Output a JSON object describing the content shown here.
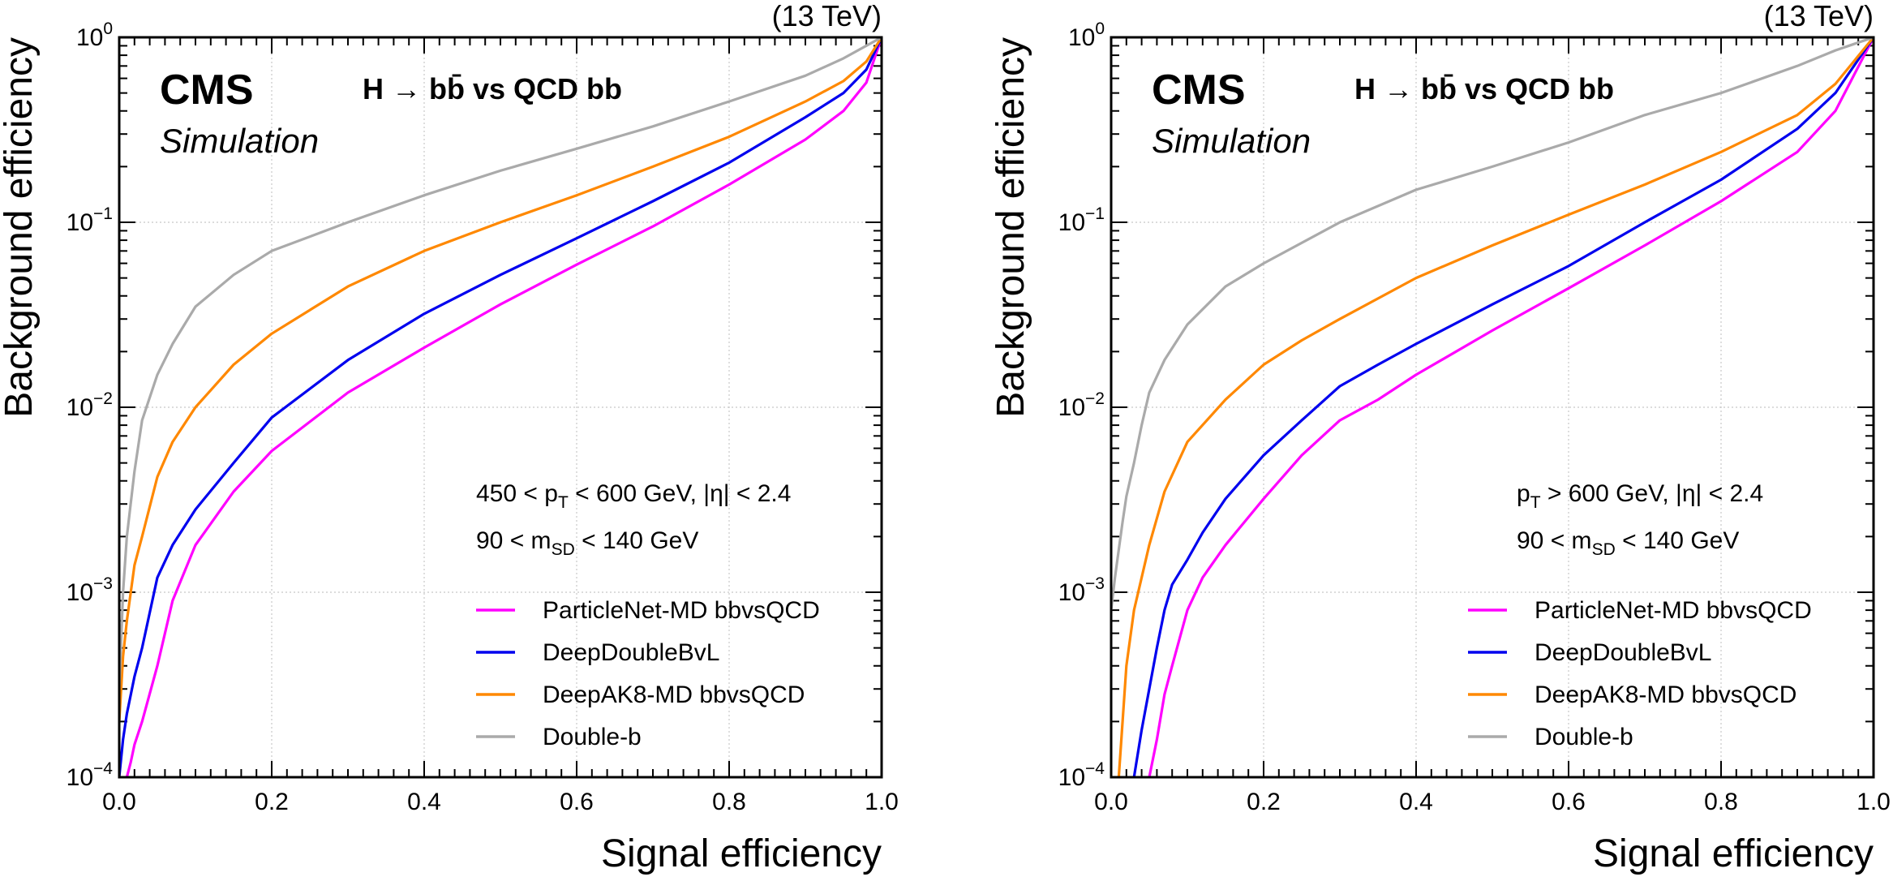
{
  "chart_data": [
    {
      "type": "line",
      "energy_label": "(13 TeV)",
      "experiment": "CMS",
      "subtitle": "Simulation",
      "process_title": "H → bb̄ vs QCD bb",
      "xlabel": "Signal efficiency",
      "ylabel": "Background efficiency",
      "xlim": [
        0,
        1
      ],
      "ylim": [
        0.0001,
        1
      ],
      "yscale": "log",
      "grid": true,
      "legend_position": "bottom-right",
      "x_ticks": [
        "0.0",
        "0.2",
        "0.4",
        "0.6",
        "0.8",
        "1.0"
      ],
      "y_ticks": [
        {
          "base": "10",
          "exp": "−4"
        },
        {
          "base": "10",
          "exp": "−3"
        },
        {
          "base": "10",
          "exp": "−2"
        },
        {
          "base": "10",
          "exp": "−1"
        },
        {
          "base": "10",
          "exp": "0"
        }
      ],
      "selection": {
        "line1_parts": [
          "450 < p",
          "T",
          " < 600 GeV, |η| < 2.4"
        ],
        "line2_parts": [
          "90 < m",
          "SD",
          " < 140 GeV"
        ]
      },
      "series": [
        {
          "name": "ParticleNet-MD bbvsQCD",
          "color": "#ff00ff",
          "x": [
            0.01,
            0.015,
            0.02,
            0.03,
            0.05,
            0.07,
            0.1,
            0.15,
            0.2,
            0.3,
            0.4,
            0.5,
            0.6,
            0.7,
            0.8,
            0.9,
            0.95,
            0.98,
            1.0
          ],
          "y": [
            0.0001,
            0.00012,
            0.00015,
            0.0002,
            0.0004,
            0.0009,
            0.0018,
            0.0035,
            0.0058,
            0.012,
            0.021,
            0.036,
            0.059,
            0.095,
            0.16,
            0.28,
            0.4,
            0.57,
            1.0
          ]
        },
        {
          "name": "DeepDoubleBvL",
          "color": "#0000ee",
          "x": [
            0.0,
            0.005,
            0.01,
            0.02,
            0.03,
            0.05,
            0.07,
            0.1,
            0.15,
            0.2,
            0.3,
            0.4,
            0.5,
            0.6,
            0.7,
            0.8,
            0.9,
            0.95,
            0.98,
            1.0
          ],
          "y": [
            0.0001,
            0.00016,
            0.00022,
            0.00035,
            0.0005,
            0.0012,
            0.0018,
            0.0028,
            0.005,
            0.0088,
            0.018,
            0.032,
            0.052,
            0.082,
            0.13,
            0.21,
            0.37,
            0.5,
            0.67,
            1.0
          ]
        },
        {
          "name": "DeepAK8-MD bbvsQCD",
          "color": "#ff8800",
          "x": [
            0.0,
            0.005,
            0.01,
            0.02,
            0.03,
            0.05,
            0.07,
            0.1,
            0.15,
            0.2,
            0.3,
            0.4,
            0.5,
            0.6,
            0.7,
            0.8,
            0.9,
            0.95,
            0.98,
            1.0
          ],
          "y": [
            0.0002,
            0.00045,
            0.0007,
            0.0014,
            0.002,
            0.0042,
            0.0065,
            0.01,
            0.017,
            0.025,
            0.045,
            0.07,
            0.1,
            0.14,
            0.2,
            0.29,
            0.45,
            0.58,
            0.74,
            1.0
          ]
        },
        {
          "name": "Double-b",
          "color": "#aaaaaa",
          "x": [
            0.0,
            0.005,
            0.01,
            0.02,
            0.03,
            0.05,
            0.07,
            0.1,
            0.15,
            0.2,
            0.3,
            0.4,
            0.5,
            0.6,
            0.7,
            0.8,
            0.9,
            0.95,
            1.0
          ],
          "y": [
            0.0003,
            0.001,
            0.002,
            0.0045,
            0.0085,
            0.015,
            0.022,
            0.035,
            0.052,
            0.07,
            0.1,
            0.14,
            0.19,
            0.25,
            0.33,
            0.45,
            0.62,
            0.77,
            1.0
          ]
        }
      ]
    },
    {
      "type": "line",
      "energy_label": "(13 TeV)",
      "experiment": "CMS",
      "subtitle": "Simulation",
      "process_title": "H → bb̄ vs QCD bb",
      "xlabel": "Signal efficiency",
      "ylabel": "Background efficiency",
      "xlim": [
        0,
        1
      ],
      "ylim": [
        0.0001,
        1
      ],
      "yscale": "log",
      "grid": true,
      "legend_position": "bottom-right",
      "x_ticks": [
        "0.0",
        "0.2",
        "0.4",
        "0.6",
        "0.8",
        "1.0"
      ],
      "y_ticks": [
        {
          "base": "10",
          "exp": "−4"
        },
        {
          "base": "10",
          "exp": "−3"
        },
        {
          "base": "10",
          "exp": "−2"
        },
        {
          "base": "10",
          "exp": "−1"
        },
        {
          "base": "10",
          "exp": "0"
        }
      ],
      "selection": {
        "line1_parts": [
          "p",
          "T",
          " > 600 GeV,   |η| < 2.4"
        ],
        "line2_parts": [
          "90 < m",
          "SD",
          " < 140 GeV"
        ]
      },
      "series": [
        {
          "name": "ParticleNet-MD bbvsQCD",
          "color": "#ff00ff",
          "x": [
            0.05,
            0.06,
            0.07,
            0.08,
            0.1,
            0.12,
            0.15,
            0.2,
            0.25,
            0.3,
            0.35,
            0.4,
            0.5,
            0.6,
            0.7,
            0.8,
            0.9,
            0.95,
            1.0
          ],
          "y": [
            0.0001,
            0.00016,
            0.00028,
            0.0004,
            0.0008,
            0.0012,
            0.0018,
            0.0032,
            0.0055,
            0.0085,
            0.011,
            0.015,
            0.026,
            0.044,
            0.075,
            0.13,
            0.24,
            0.4,
            1.0
          ]
        },
        {
          "name": "DeepDoubleBvL",
          "color": "#0000ee",
          "x": [
            0.03,
            0.04,
            0.05,
            0.06,
            0.07,
            0.08,
            0.1,
            0.12,
            0.15,
            0.2,
            0.25,
            0.3,
            0.35,
            0.4,
            0.5,
            0.6,
            0.7,
            0.8,
            0.9,
            0.95,
            1.0
          ],
          "y": [
            0.0001,
            0.00018,
            0.0003,
            0.0005,
            0.0008,
            0.0011,
            0.0015,
            0.0021,
            0.0032,
            0.0055,
            0.0085,
            0.013,
            0.017,
            0.022,
            0.036,
            0.058,
            0.1,
            0.17,
            0.32,
            0.5,
            1.0
          ]
        },
        {
          "name": "DeepAK8-MD bbvsQCD",
          "color": "#ff8800",
          "x": [
            0.01,
            0.015,
            0.02,
            0.03,
            0.05,
            0.07,
            0.1,
            0.15,
            0.2,
            0.25,
            0.3,
            0.4,
            0.5,
            0.6,
            0.7,
            0.8,
            0.9,
            0.95,
            1.0
          ],
          "y": [
            0.0001,
            0.0002,
            0.0004,
            0.0008,
            0.0018,
            0.0035,
            0.0065,
            0.011,
            0.017,
            0.023,
            0.03,
            0.05,
            0.075,
            0.11,
            0.16,
            0.24,
            0.38,
            0.56,
            1.0
          ]
        },
        {
          "name": "Double-b",
          "color": "#aaaaaa",
          "x": [
            0.0,
            0.005,
            0.01,
            0.015,
            0.02,
            0.03,
            0.04,
            0.05,
            0.07,
            0.1,
            0.15,
            0.2,
            0.3,
            0.4,
            0.5,
            0.6,
            0.7,
            0.8,
            0.9,
            0.95,
            1.0
          ],
          "y": [
            0.0008,
            0.0012,
            0.0017,
            0.0024,
            0.0033,
            0.005,
            0.008,
            0.012,
            0.018,
            0.028,
            0.045,
            0.06,
            0.1,
            0.15,
            0.2,
            0.27,
            0.38,
            0.5,
            0.7,
            0.85,
            1.0
          ]
        }
      ]
    }
  ]
}
